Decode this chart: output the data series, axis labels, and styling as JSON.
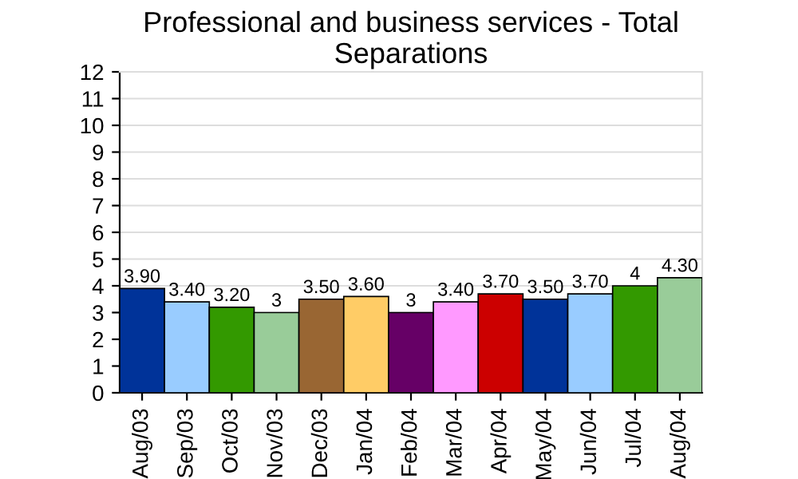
{
  "chart_data": {
    "type": "bar",
    "title": "Professional and business services - Total\nSeparations",
    "categories": [
      "Aug/03",
      "Sep/03",
      "Oct/03",
      "Nov/03",
      "Dec/03",
      "Jan/04",
      "Feb/04",
      "Mar/04",
      "Apr/04",
      "May/04",
      "Jun/04",
      "Jul/04",
      "Aug/04"
    ],
    "values": [
      3.9,
      3.4,
      3.2,
      3,
      3.5,
      3.6,
      3,
      3.4,
      3.7,
      3.5,
      3.7,
      4,
      4.3
    ],
    "value_labels": [
      "3.90",
      "3.40",
      "3.20",
      "3",
      "3.50",
      "3.60",
      "3",
      "3.40",
      "3.70",
      "3.50",
      "3.70",
      "4",
      "4.30"
    ],
    "colors": [
      "#003399",
      "#99ccff",
      "#339900",
      "#99cc99",
      "#996633",
      "#ffcc66",
      "#660066",
      "#ff99ff",
      "#cc0000",
      "#003399",
      "#99ccff",
      "#339900",
      "#99cc99"
    ],
    "ylim": [
      0,
      12
    ],
    "yticks": [
      0,
      1,
      2,
      3,
      4,
      5,
      6,
      7,
      8,
      9,
      10,
      11,
      12
    ],
    "grid": "y"
  }
}
